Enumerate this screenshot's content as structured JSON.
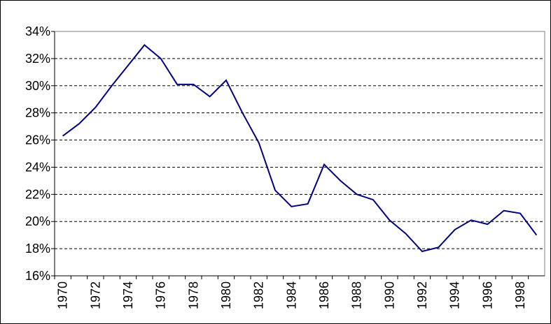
{
  "chart_data": {
    "type": "line",
    "categories": [
      "1970",
      null,
      "1972",
      null,
      "1974",
      null,
      "1976",
      null,
      "1978",
      null,
      "1980",
      null,
      "1982",
      null,
      "1984",
      null,
      "1986",
      null,
      "1988",
      null,
      "1990",
      null,
      "1992",
      null,
      "1994",
      null,
      "1996",
      null,
      "1998",
      null
    ],
    "values": [
      26.3,
      27.2,
      28.4,
      30.0,
      31.5,
      33.0,
      32.0,
      30.1,
      30.1,
      29.2,
      30.4,
      28.0,
      25.8,
      22.3,
      21.1,
      21.3,
      24.2,
      23.0,
      22.0,
      21.6,
      20.1,
      19.1,
      17.8,
      18.1,
      19.4,
      20.1,
      19.8,
      20.8,
      20.6,
      19.0
    ],
    "color": "#000080",
    "ylim": [
      16,
      34
    ],
    "yticks": [
      {
        "value": 16,
        "label": "16%"
      },
      {
        "value": 18,
        "label": "18%"
      },
      {
        "value": 20,
        "label": "20%"
      },
      {
        "value": 22,
        "label": "22%"
      },
      {
        "value": 24,
        "label": "24%"
      },
      {
        "value": 26,
        "label": "26%"
      },
      {
        "value": 28,
        "label": "28%"
      },
      {
        "value": 30,
        "label": "30%"
      },
      {
        "value": 32,
        "label": "32%"
      },
      {
        "value": 34,
        "label": "34%"
      }
    ],
    "grid": true
  }
}
